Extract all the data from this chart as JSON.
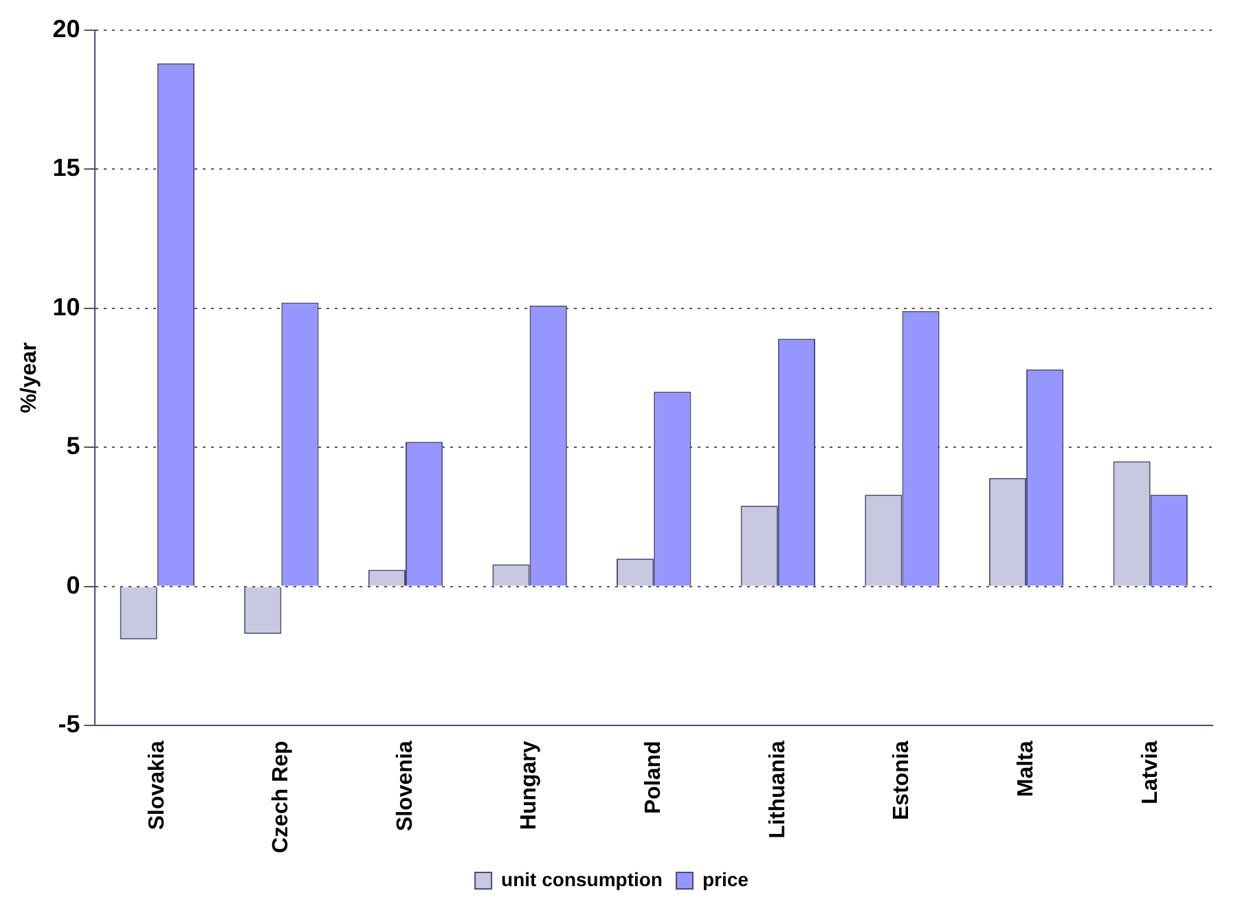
{
  "chart_data": {
    "type": "bar",
    "ylabel": "%/year",
    "categories": [
      "Slovakia",
      "Czech Rep",
      "Slovenia",
      "Hungary",
      "Poland",
      "Lithuania",
      "Estonia",
      "Malta",
      "Latvia"
    ],
    "series": [
      {
        "name": "unit consumption",
        "color": "#c8c8e0",
        "values": [
          -1.9,
          -1.7,
          0.6,
          0.8,
          1.0,
          2.9,
          3.3,
          3.9,
          4.5
        ]
      },
      {
        "name": "price",
        "color": "#9696ff",
        "values": [
          18.8,
          10.2,
          5.2,
          10.1,
          7.0,
          8.9,
          9.9,
          7.8,
          3.3
        ]
      }
    ],
    "ylim": [
      -5,
      20
    ],
    "yticks": [
      -5,
      0,
      5,
      10,
      15,
      20
    ],
    "grid": "y",
    "legend": "bottom"
  }
}
